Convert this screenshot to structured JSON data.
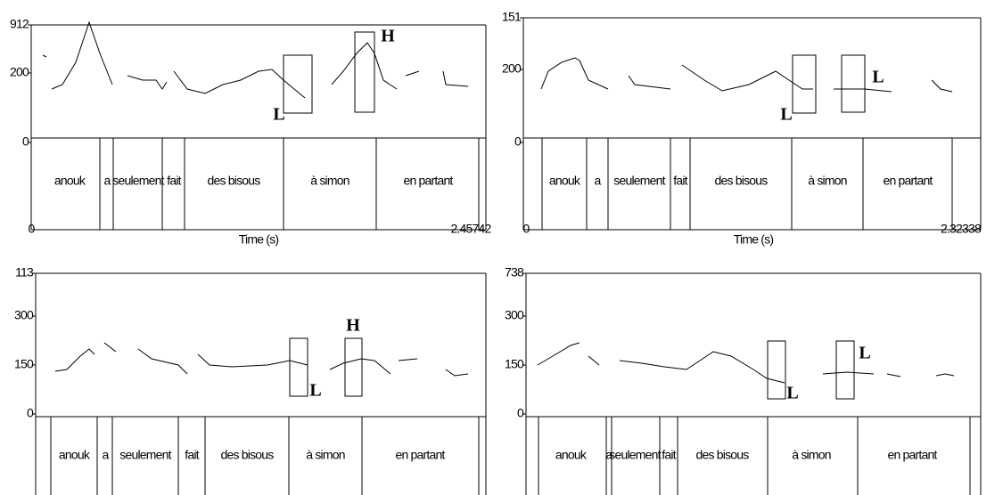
{
  "panels": [
    {
      "y_labels": [
        "912",
        "200",
        "0"
      ],
      "x_labels": [
        "0",
        "2.45742"
      ],
      "time_label": "Time (s)",
      "words": [
        "anouk",
        "a",
        "seulement",
        "fait",
        "des bisous",
        "à simon",
        "en partant"
      ],
      "tones": [
        "L",
        "H"
      ]
    },
    {
      "y_labels": [
        "151",
        "200",
        "0"
      ],
      "x_labels": [
        "0",
        "2.32338"
      ],
      "time_label": "Time (s)",
      "words": [
        "anouk",
        "a",
        "seulement",
        "fait",
        "des bisous",
        "à simon",
        "en partant"
      ],
      "tones": [
        "L",
        "L"
      ]
    },
    {
      "y_labels": [
        "113",
        "300",
        "150",
        "0"
      ],
      "words": [
        "anouk",
        "a",
        "seulement",
        "fait",
        "des bisous",
        "à simon",
        "en partant"
      ],
      "tones": [
        "L",
        "H"
      ]
    },
    {
      "y_labels": [
        "738",
        "300",
        "150",
        "0"
      ],
      "words": [
        "anouk",
        "a",
        "seulement",
        "fait",
        "des bisous",
        "à simon",
        "en partant"
      ],
      "tones": [
        "L",
        "L"
      ]
    }
  ]
}
